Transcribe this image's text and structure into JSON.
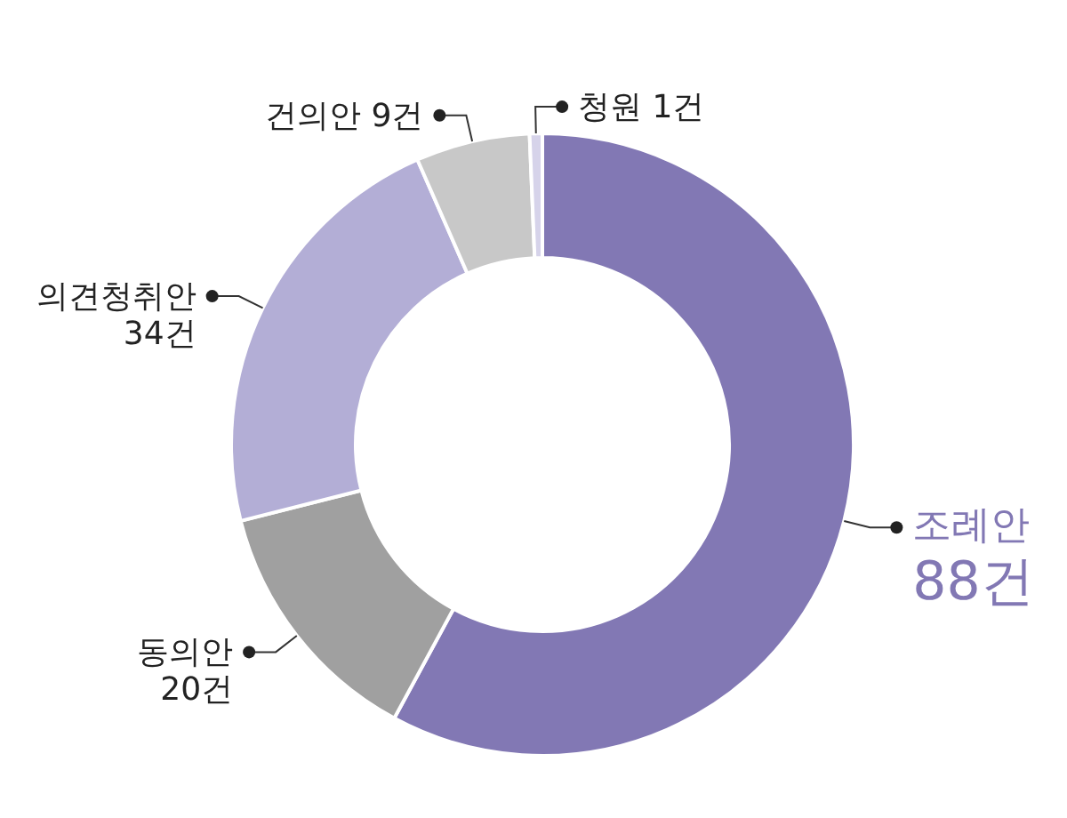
{
  "chart_data": {
    "type": "donut",
    "categories": [
      "조례안",
      "동의안",
      "의견청취안",
      "건의안",
      "청원"
    ],
    "values": [
      88,
      20,
      34,
      9,
      1
    ],
    "colors": [
      "#8278b4",
      "#a0a0a0",
      "#b3aed6",
      "#c8c8c8",
      "#d6d3ea"
    ],
    "value_labels": [
      "88건",
      "20건",
      "34건",
      "9건",
      "1건"
    ]
  }
}
